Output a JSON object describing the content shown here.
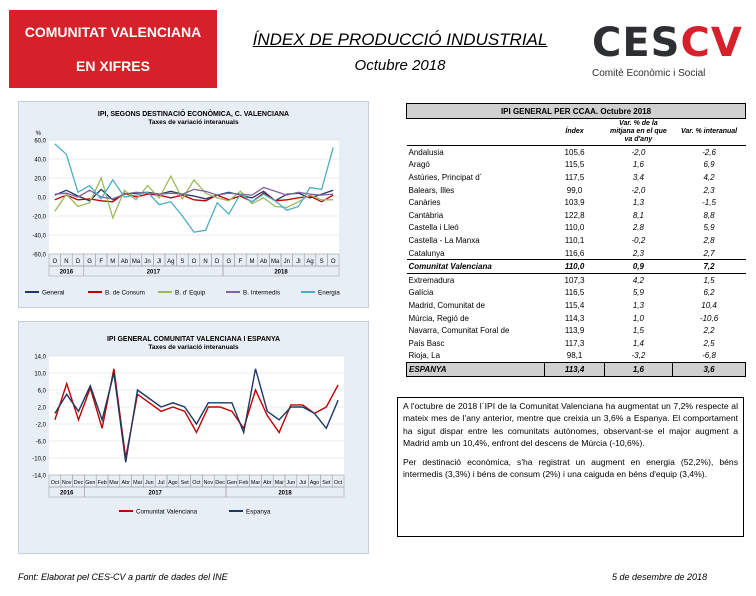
{
  "header": {
    "badge_line1": "COMUNITAT VALENCIANA",
    "badge_line2": "EN XIFRES",
    "title": "ÍNDEX DE PRODUCCIÓ INDUSTRIAL",
    "subtitle": "Octubre 2018",
    "logo_main": "CES",
    "logo_accent": "CV",
    "logo_sub": "Comitè Econòmic i Social",
    "colors": {
      "badge": "#d6202a",
      "logo_dark": "#2d2f33",
      "logo_red": "#d6202a"
    }
  },
  "chart_data": [
    {
      "type": "line",
      "title": "IPI, SEGONS DESTINACIÓ ECONÒMICA, C. VALENCIANA",
      "subtitle": "Taxes de variació interanuals",
      "ylabel": "%",
      "ylim": [
        -60,
        60
      ],
      "yticks": [
        "60,0",
        "40,0",
        "20,0",
        "0,0",
        "-20,0",
        "-40,0",
        "-60,0"
      ],
      "categories": [
        "O",
        "N",
        "D",
        "G",
        "F",
        "M",
        "Ab",
        "Ma",
        "Jn",
        "Jl",
        "Ag",
        "S",
        "O",
        "N",
        "D",
        "G",
        "F",
        "M",
        "Ab",
        "Ma",
        "Jn",
        "Jl",
        "Ag",
        "S",
        "O"
      ],
      "years": [
        {
          "label": "2016",
          "from": 0,
          "to": 2
        },
        {
          "label": "2017",
          "from": 3,
          "to": 14
        },
        {
          "label": "2018",
          "from": 15,
          "to": 24
        }
      ],
      "legend_position": "bottom",
      "series": [
        {
          "name": "General",
          "color": "#1f3864",
          "values": [
            2,
            7,
            1,
            -4,
            8,
            -3,
            3,
            4,
            5,
            3,
            6,
            3,
            1,
            -2,
            2,
            5,
            2,
            -1,
            6,
            -4,
            3,
            4,
            -1,
            3,
            7
          ]
        },
        {
          "name": "B. de Consum",
          "color": "#c00000",
          "values": [
            -3,
            2,
            -3,
            -2,
            -4,
            -5,
            4,
            0,
            3,
            2,
            -1,
            2,
            -3,
            -4,
            2,
            -3,
            1,
            -5,
            4,
            -4,
            -3,
            -1,
            1,
            -5,
            2
          ]
        },
        {
          "name": "B. d' Equip",
          "color": "#9bbb59",
          "values": [
            -15,
            3,
            -10,
            -6,
            20,
            -22,
            7,
            -3,
            12,
            -1,
            22,
            -2,
            18,
            4,
            -1,
            -4,
            6,
            -7,
            -1,
            -10,
            -11,
            -5,
            2,
            -3,
            -3
          ]
        },
        {
          "name": "B. Intermedis",
          "color": "#8064a2",
          "values": [
            3,
            4,
            0,
            7,
            0,
            -2,
            3,
            5,
            4,
            3,
            4,
            3,
            8,
            6,
            2,
            4,
            3,
            2,
            10,
            6,
            2,
            5,
            3,
            2,
            3
          ]
        },
        {
          "name": "Energia",
          "color": "#4bacc6",
          "values": [
            56,
            45,
            5,
            12,
            -2,
            18,
            0,
            2,
            5,
            -8,
            -5,
            -20,
            -37,
            -35,
            -6,
            -18,
            3,
            -5,
            3,
            -4,
            -14,
            -10,
            10,
            8,
            52
          ]
        }
      ]
    },
    {
      "type": "line",
      "title": "IPI GENERAL COMUNITAT VALENCIANA I ESPANYA",
      "subtitle": "Taxes de variació interanuals",
      "ylim": [
        -14,
        14
      ],
      "yticks": [
        "14,0",
        "10,0",
        "6,0",
        "2,0",
        "-2,0",
        "-6,0",
        "-10,0",
        "-14,0"
      ],
      "categories": [
        "Oct",
        "Nov",
        "Dec",
        "Gen",
        "Feb",
        "Mar",
        "Abr",
        "Mai",
        "Jun",
        "Jul",
        "Ago",
        "Set",
        "Oct",
        "Nov",
        "Dec",
        "Gen",
        "Feb",
        "Mar",
        "Abr",
        "Mai",
        "Jun",
        "Jul",
        "Ago",
        "Set",
        "Oct"
      ],
      "years": [
        {
          "label": "2016",
          "from": 0,
          "to": 2
        },
        {
          "label": "2017",
          "from": 3,
          "to": 14
        },
        {
          "label": "2018",
          "from": 15,
          "to": 24
        }
      ],
      "legend_position": "bottom",
      "series": [
        {
          "name": "Comunitat Valenciana",
          "color": "#c00000",
          "values": [
            -1,
            7.5,
            -1,
            6.5,
            -3,
            11,
            -10,
            5,
            3,
            1,
            2,
            1,
            -4,
            2,
            2,
            1,
            -3,
            6,
            0,
            -4,
            2.5,
            2.5,
            0.5,
            2,
            7.2
          ]
        },
        {
          "name": "Espanya",
          "color": "#1f3864",
          "values": [
            0.5,
            5,
            1,
            7,
            -1,
            10,
            -11,
            6,
            4,
            2,
            3,
            2,
            -2,
            3,
            3,
            3,
            -4,
            11,
            1,
            -1,
            2,
            2,
            0.5,
            -3,
            3.6
          ]
        }
      ]
    }
  ],
  "table": {
    "title": "IPI GENERAL PER CCAA. Octubre 2018",
    "col1": "Índex",
    "col2": "Var. % de la mitjana en el que va d'any",
    "col3": "Var. % interanual",
    "rows": [
      [
        "Andalusia",
        "105,6",
        "-2,0",
        "-2,6"
      ],
      [
        "Aragó",
        "115,5",
        "1,6",
        "6,9"
      ],
      [
        "Astúries, Principat d´",
        "117,5",
        "3,4",
        "4,2"
      ],
      [
        "Balears, Illes",
        "99,0",
        "-2,0",
        "2,3"
      ],
      [
        "Canàries",
        "103,9",
        "1,3",
        "-1,5"
      ],
      [
        "Cantàbria",
        "122,8",
        "8,1",
        "8,8"
      ],
      [
        "Castella i Lleó",
        "110,0",
        "2,8",
        "5,9"
      ],
      [
        "Castella - La Manxa",
        "110,1",
        "-0,2",
        "2,8"
      ],
      [
        "Catalunya",
        "116,6",
        "2,3",
        "2,7"
      ],
      [
        "Comunitat Valenciana",
        "110,0",
        "0,9",
        "7,2"
      ],
      [
        "Extremadura",
        "107,3",
        "4,2",
        "1,5"
      ],
      [
        "Galícia",
        "116,5",
        "5,9",
        "6,2"
      ],
      [
        "Madrid, Comunitat de",
        "115,4",
        "1,3",
        "10,4"
      ],
      [
        "Múrcia, Regió de",
        "114,3",
        "1,0",
        "-10,6"
      ],
      [
        "Navarra, Comunitat Foral de",
        "113,9",
        "1,5",
        "2,2"
      ],
      [
        "País Basc",
        "117,3",
        "1,4",
        "2,5"
      ],
      [
        "Rioja, La",
        "98,1",
        "-3,2",
        "-6,8"
      ],
      [
        "ESPANYA",
        "113,4",
        "1,6",
        "3,6"
      ]
    ]
  },
  "text": {
    "p1": "A l'octubre de 2018 l´IPI de la Comunitat Valenciana ha augmentat un 7,2% respecte al mateix mes de l'any anterior, mentre que creixia un 3,6% a Espanya. El comportament ha sigut dispar entre les comunitats autònomes, observant-se el major augment a Madrid amb un 10,4%, enfront del descens de Múrcia (-10,6%).",
    "p2": "Per destinació econòmica, s'ha registrat un augment en energia (52,2%), béns intermedis (3,3%) i béns de consum (2%) i una caiguda en béns d'equip (3,4%)."
  },
  "footer": {
    "source": "Font: Elaborat pel CES-CV a partir de dades del INE",
    "date": "5 de desembre de 2018"
  }
}
